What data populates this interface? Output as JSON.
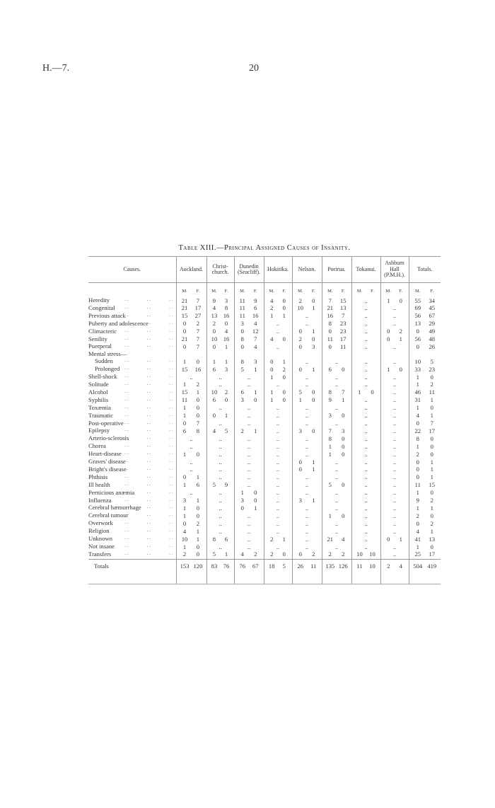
{
  "page": {
    "series": "H.—7.",
    "number": "20"
  },
  "table": {
    "title": "Table XIII.—Principal Assigned Causes of Insanity.",
    "columns": [
      "Causes.",
      "Auckland.",
      "Christ-church.",
      "Dunedin (Seacliff).",
      "Hokitika.",
      "Nelson.",
      "Porirua.",
      "Tokanui.",
      "Ashburn Hall (P.M.H.).",
      "Totals."
    ],
    "sex_labels": [
      "M.",
      "F."
    ],
    "empty": "..",
    "rows": [
      {
        "label": "Heredity",
        "values": [
          [
            "21",
            "7"
          ],
          [
            "9",
            "3"
          ],
          [
            "11",
            "9"
          ],
          [
            "4",
            "0"
          ],
          [
            "2",
            "0"
          ],
          [
            "7",
            "15"
          ],
          "..",
          [
            "1",
            "0"
          ],
          [
            "55",
            "34"
          ]
        ]
      },
      {
        "label": "Congenital",
        "values": [
          [
            "21",
            "17"
          ],
          [
            "4",
            "8"
          ],
          [
            "11",
            "6"
          ],
          [
            "2",
            "0"
          ],
          [
            "10",
            "1"
          ],
          [
            "21",
            "13"
          ],
          "..",
          "..",
          [
            "69",
            "45"
          ]
        ]
      },
      {
        "label": "Previous attack",
        "values": [
          [
            "15",
            "27"
          ],
          [
            "13",
            "16"
          ],
          [
            "11",
            "16"
          ],
          [
            "1",
            "1"
          ],
          "..",
          [
            "16",
            "7"
          ],
          "..",
          "..",
          [
            "56",
            "67"
          ]
        ]
      },
      {
        "label": "Puberty and adolescence",
        "values": [
          [
            "0",
            "2"
          ],
          [
            "2",
            "0"
          ],
          [
            "3",
            "4"
          ],
          "..",
          "..",
          [
            "8",
            "23"
          ],
          "..",
          "..",
          [
            "13",
            "29"
          ]
        ]
      },
      {
        "label": "Climacteric",
        "values": [
          [
            "0",
            "7"
          ],
          [
            "0",
            "4"
          ],
          [
            "0",
            "12"
          ],
          "..",
          [
            "0",
            "1"
          ],
          [
            "0",
            "23"
          ],
          "..",
          [
            "0",
            "2"
          ],
          [
            "0",
            "49"
          ]
        ]
      },
      {
        "label": "Senility",
        "values": [
          [
            "21",
            "7"
          ],
          [
            "10",
            "16"
          ],
          [
            "8",
            "7"
          ],
          [
            "4",
            "0"
          ],
          [
            "2",
            "0"
          ],
          [
            "11",
            "17"
          ],
          "..",
          [
            "0",
            "1"
          ],
          [
            "56",
            "48"
          ]
        ]
      },
      {
        "label": "Puerperal",
        "values": [
          [
            "0",
            "7"
          ],
          [
            "0",
            "1"
          ],
          [
            "0",
            "4"
          ],
          "..",
          [
            "0",
            "3"
          ],
          [
            "0",
            "11"
          ],
          "..",
          "..",
          [
            "0",
            "26"
          ]
        ]
      },
      {
        "label": "Mental stress—",
        "heading": true
      },
      {
        "label": "Sudden",
        "indent": true,
        "values": [
          [
            "1",
            "0"
          ],
          [
            "1",
            "1"
          ],
          [
            "8",
            "3"
          ],
          [
            "0",
            "1"
          ],
          "..",
          "..",
          "..",
          "..",
          [
            "10",
            "5"
          ]
        ]
      },
      {
        "label": "Prolonged",
        "indent": true,
        "values": [
          [
            "15",
            "16"
          ],
          [
            "6",
            "3"
          ],
          [
            "5",
            "1"
          ],
          [
            "0",
            "2"
          ],
          [
            "0",
            "1"
          ],
          [
            "6",
            "0"
          ],
          "..",
          [
            "1",
            "0"
          ],
          [
            "33",
            "23"
          ]
        ]
      },
      {
        "label": "Shell-shock",
        "values": [
          "..",
          "..",
          "..",
          [
            "1",
            "0"
          ],
          "..",
          "..",
          "..",
          "..",
          [
            "1",
            "0"
          ]
        ]
      },
      {
        "label": "Solitude",
        "values": [
          [
            "1",
            "2"
          ],
          "..",
          "..",
          "..",
          "..",
          "..",
          "..",
          "..",
          [
            "1",
            "2"
          ]
        ]
      },
      {
        "label": "Alcohol",
        "values": [
          [
            "15",
            "1"
          ],
          [
            "10",
            "2"
          ],
          [
            "6",
            "1"
          ],
          [
            "1",
            "0"
          ],
          [
            "5",
            "0"
          ],
          [
            "8",
            "7"
          ],
          [
            "1",
            "0"
          ],
          "..",
          [
            "46",
            "11"
          ]
        ]
      },
      {
        "label": "Syphilis",
        "values": [
          [
            "11",
            "0"
          ],
          [
            "6",
            "0"
          ],
          [
            "3",
            "0"
          ],
          [
            "1",
            "0"
          ],
          [
            "1",
            "0"
          ],
          [
            "9",
            "1"
          ],
          "..",
          "..",
          [
            "31",
            "1"
          ]
        ]
      },
      {
        "label": "Toxæmia",
        "values": [
          [
            "1",
            "0"
          ],
          "..",
          "..",
          "..",
          "..",
          "..",
          "..",
          "..",
          [
            "1",
            "0"
          ]
        ]
      },
      {
        "label": "Traumatic",
        "values": [
          [
            "1",
            "0"
          ],
          [
            "0",
            "1"
          ],
          "..",
          "..",
          "..",
          [
            "3",
            "0"
          ],
          "..",
          "..",
          [
            "4",
            "1"
          ]
        ]
      },
      {
        "label": "Post-operative",
        "values": [
          [
            "0",
            "7"
          ],
          "..",
          "..",
          "..",
          "..",
          "..",
          "..",
          "..",
          [
            "0",
            "7"
          ]
        ]
      },
      {
        "label": "Epilepsy",
        "values": [
          [
            "6",
            "8"
          ],
          [
            "4",
            "5"
          ],
          [
            "2",
            "1"
          ],
          "..",
          [
            "3",
            "0"
          ],
          [
            "7",
            "3"
          ],
          "..",
          "..",
          [
            "22",
            "17"
          ]
        ]
      },
      {
        "label": "Arterio-sclerosis",
        "values": [
          "..",
          "..",
          "..",
          "..",
          "..",
          [
            "8",
            "0"
          ],
          "..",
          "..",
          [
            "8",
            "0"
          ]
        ]
      },
      {
        "label": "Chorea",
        "values": [
          "..",
          "..",
          "..",
          "..",
          "..",
          [
            "1",
            "0"
          ],
          "..",
          "..",
          [
            "1",
            "0"
          ]
        ]
      },
      {
        "label": "Heart-disease",
        "values": [
          [
            "1",
            "0"
          ],
          "..",
          "..",
          "..",
          "..",
          [
            "1",
            "0"
          ],
          "..",
          "..",
          [
            "2",
            "0"
          ]
        ]
      },
      {
        "label": "Graves' disease",
        "values": [
          "..",
          "..",
          "..",
          "..",
          [
            "0",
            "1"
          ],
          "..",
          "..",
          "..",
          [
            "0",
            "1"
          ]
        ]
      },
      {
        "label": "Bright's disease",
        "values": [
          "..",
          "..",
          "..",
          "..",
          [
            "0",
            "1"
          ],
          "..",
          "..",
          "..",
          [
            "0",
            "1"
          ]
        ]
      },
      {
        "label": "Phthisis",
        "values": [
          [
            "0",
            "1"
          ],
          "..",
          "..",
          "..",
          "..",
          "..",
          "..",
          "..",
          [
            "0",
            "1"
          ]
        ]
      },
      {
        "label": "Ill health",
        "values": [
          [
            "1",
            "6"
          ],
          [
            "5",
            "9"
          ],
          "..",
          "..",
          "..",
          [
            "5",
            "0"
          ],
          "..",
          "..",
          [
            "11",
            "15"
          ]
        ]
      },
      {
        "label": "Pernicious anæmia",
        "values": [
          "..",
          "..",
          [
            "1",
            "0"
          ],
          "..",
          "..",
          "..",
          "..",
          "..",
          [
            "1",
            "0"
          ]
        ]
      },
      {
        "label": "Influenza",
        "values": [
          [
            "3",
            "1"
          ],
          "..",
          [
            "3",
            "0"
          ],
          "..",
          [
            "3",
            "1"
          ],
          "..",
          "..",
          "..",
          [
            "9",
            "2"
          ]
        ]
      },
      {
        "label": "Cerebral hæmorrhage",
        "values": [
          [
            "1",
            "0"
          ],
          "..",
          [
            "0",
            "1"
          ],
          "..",
          "..",
          "..",
          "..",
          "..",
          [
            "1",
            "1"
          ]
        ]
      },
      {
        "label": "Cerebral tumour",
        "values": [
          [
            "1",
            "0"
          ],
          "..",
          "..",
          "..",
          "..",
          [
            "1",
            "0"
          ],
          "..",
          "..",
          [
            "2",
            "0"
          ]
        ]
      },
      {
        "label": "Overwork",
        "values": [
          [
            "0",
            "2"
          ],
          "..",
          "..",
          "..",
          "..",
          "..",
          "..",
          "..",
          [
            "0",
            "2"
          ]
        ]
      },
      {
        "label": "Religion",
        "values": [
          [
            "4",
            "1"
          ],
          "..",
          "..",
          "..",
          "..",
          "..",
          "..",
          "..",
          [
            "4",
            "1"
          ]
        ]
      },
      {
        "label": "Unknown",
        "values": [
          [
            "10",
            "1"
          ],
          [
            "8",
            "6"
          ],
          "..",
          [
            "2",
            "1"
          ],
          "..",
          [
            "21",
            "4"
          ],
          "..",
          [
            "0",
            "1"
          ],
          [
            "41",
            "13"
          ]
        ]
      },
      {
        "label": "Not insane",
        "values": [
          [
            "1",
            "0"
          ],
          "..",
          "..",
          "..",
          "..",
          "..",
          "..",
          "..",
          [
            "1",
            "0"
          ]
        ]
      },
      {
        "label": "Transfers",
        "values": [
          [
            "2",
            "0"
          ],
          [
            "5",
            "1"
          ],
          [
            "4",
            "2"
          ],
          [
            "2",
            "0"
          ],
          [
            "0",
            "2"
          ],
          [
            "2",
            "2"
          ],
          [
            "10",
            "10"
          ],
          "..",
          [
            "25",
            "17"
          ]
        ]
      }
    ],
    "totals": {
      "label": "Totals",
      "values": [
        [
          "153",
          "120"
        ],
        [
          "83",
          "76"
        ],
        [
          "76",
          "67"
        ],
        [
          "18",
          "5"
        ],
        [
          "26",
          "11"
        ],
        [
          "135",
          "126"
        ],
        [
          "11",
          "10"
        ],
        [
          "2",
          "4"
        ],
        [
          "504",
          "419"
        ]
      ]
    }
  }
}
